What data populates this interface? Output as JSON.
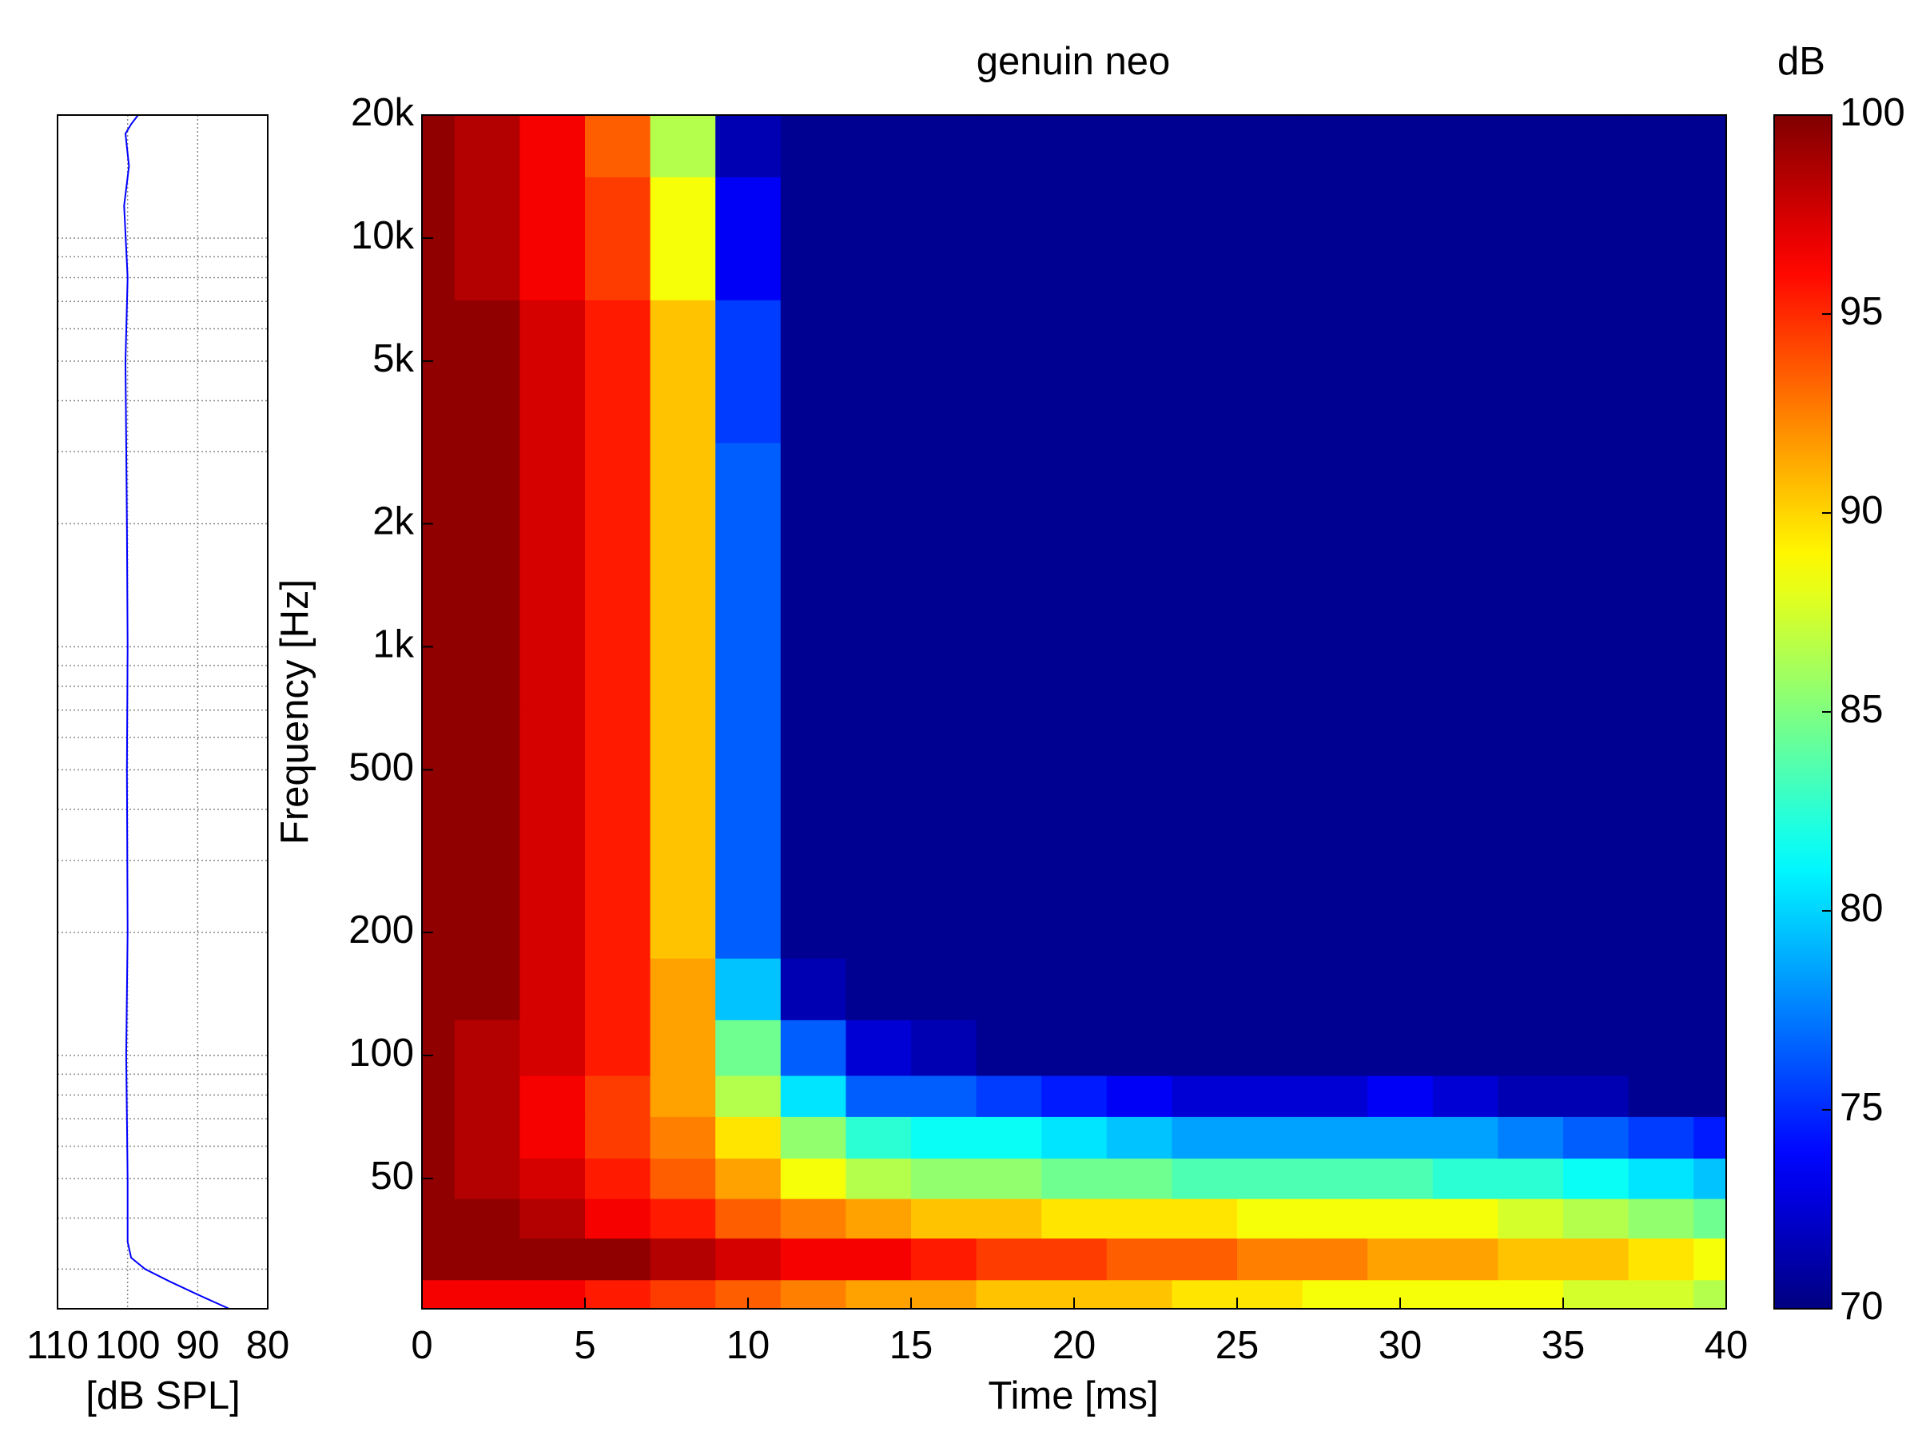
{
  "chart_data": [
    {
      "type": "line",
      "xlabel": "[dB SPL]",
      "xlim": [
        110,
        80
      ],
      "xticks": [
        110,
        100,
        90,
        80
      ],
      "ylim": [
        24,
        20000
      ],
      "log_y": true,
      "grid": true,
      "show_ytick_labels": false,
      "yticks": [
        30,
        40,
        50,
        60,
        70,
        80,
        90,
        100,
        200,
        300,
        400,
        500,
        600,
        700,
        800,
        900,
        1000,
        2000,
        3000,
        4000,
        5000,
        6000,
        7000,
        8000,
        9000,
        10000
      ],
      "frequencies": [
        24,
        26,
        28,
        30,
        32,
        35,
        50,
        100,
        200,
        500,
        1000,
        2000,
        5000,
        8000,
        12000,
        15000,
        18000,
        19000,
        20000
      ],
      "values": [
        85.5,
        90,
        94,
        97.5,
        99.5,
        100,
        100,
        100.2,
        100,
        100.1,
        100,
        100.1,
        100.3,
        100,
        100.5,
        99.8,
        100.3,
        99.5,
        98.5
      ],
      "color": "#0000ff"
    },
    {
      "type": "heatmap",
      "title": "genuin neo",
      "xlabel": "Time [ms]",
      "ylabel": "Frequency [Hz]",
      "xlim": [
        0,
        40
      ],
      "xticks": [
        0,
        5,
        10,
        15,
        20,
        25,
        30,
        35,
        40
      ],
      "ylim": [
        24,
        20000
      ],
      "log_y": true,
      "yticks": [
        50,
        100,
        200,
        500,
        {
          "value": 1000,
          "label": "1k"
        },
        {
          "value": 2000,
          "label": "2k"
        },
        {
          "value": 5000,
          "label": "5k"
        },
        {
          "value": 10000,
          "label": "10k"
        },
        {
          "value": 20000,
          "label": "20k"
        }
      ],
      "colormap": "jet",
      "zlim": [
        70,
        100
      ],
      "x": [
        0,
        2,
        4,
        6,
        8,
        10,
        12,
        14,
        16,
        18,
        20,
        22,
        24,
        26,
        28,
        30,
        32,
        34,
        36,
        38,
        40
      ],
      "y": [
        25,
        32,
        40,
        50,
        63,
        80,
        100,
        150,
        200,
        500,
        1000,
        2000,
        5000,
        10000,
        20000
      ],
      "z": [
        [
          96,
          96,
          96,
          95,
          94,
          93,
          92,
          91,
          91,
          90,
          90,
          90,
          89,
          89,
          88,
          88,
          88,
          88,
          87,
          87,
          86
        ],
        [
          100,
          100,
          99.5,
          99,
          98,
          97,
          96,
          96,
          95,
          94,
          94,
          93,
          93,
          92,
          92,
          91,
          91,
          90,
          90,
          89,
          88
        ],
        [
          99.5,
          99,
          98,
          96,
          95,
          93,
          92,
          91,
          90,
          90,
          89,
          89,
          89,
          88,
          88,
          88,
          88,
          87,
          86,
          85,
          84
        ],
        [
          99,
          98,
          97,
          95,
          93,
          91,
          88,
          86,
          85,
          85,
          84,
          84,
          83,
          83,
          83,
          83,
          82,
          82,
          81,
          80,
          79
        ],
        [
          99,
          98,
          96,
          94,
          92,
          89,
          85,
          82,
          81,
          81,
          80,
          79,
          78,
          78,
          78,
          78,
          78,
          77,
          76,
          75,
          74
        ],
        [
          99,
          98,
          96,
          94,
          91,
          86,
          80,
          76,
          76,
          75,
          74,
          73,
          72,
          72,
          72,
          73,
          72,
          71,
          71,
          70,
          70
        ],
        [
          99,
          98.5,
          97,
          95,
          91,
          84,
          76,
          72,
          71,
          70,
          70,
          70,
          70,
          70,
          70,
          70,
          70,
          70,
          70,
          70,
          70
        ],
        [
          99,
          99,
          97.5,
          95,
          91,
          79,
          71,
          70,
          70,
          70,
          70,
          70,
          70,
          70,
          70,
          70,
          70,
          70,
          70,
          70,
          70
        ],
        [
          99,
          99,
          97.5,
          95,
          90,
          76,
          70,
          70,
          70,
          70,
          70,
          70,
          70,
          70,
          70,
          70,
          70,
          70,
          70,
          70,
          70
        ],
        [
          99,
          99,
          97.5,
          95,
          90,
          76,
          70,
          70,
          70,
          70,
          70,
          70,
          70,
          70,
          70,
          70,
          70,
          70,
          70,
          70,
          70
        ],
        [
          99,
          99,
          97.5,
          95,
          90,
          76,
          70,
          70,
          70,
          70,
          70,
          70,
          70,
          70,
          70,
          70,
          70,
          70,
          70,
          70,
          70
        ],
        [
          99.5,
          99,
          97.5,
          95,
          90,
          76,
          70,
          70,
          70,
          70,
          70,
          70,
          70,
          70,
          70,
          70,
          70,
          70,
          70,
          70,
          70
        ],
        [
          99,
          99,
          97,
          95,
          90,
          75,
          70,
          70,
          70,
          70,
          70,
          70,
          70,
          70,
          70,
          70,
          70,
          70,
          70,
          70,
          70
        ],
        [
          99,
          98.5,
          96.5,
          94,
          88,
          73,
          70,
          70,
          70,
          70,
          70,
          70,
          70,
          70,
          70,
          70,
          70,
          70,
          70,
          70,
          70
        ],
        [
          99,
          98,
          96,
          93,
          86,
          71,
          70,
          70,
          70,
          70,
          70,
          70,
          70,
          70,
          70,
          70,
          70,
          70,
          70,
          70,
          70
        ]
      ]
    },
    {
      "type": "colorbar",
      "title": "dB",
      "colormap": "jet",
      "ylim": [
        70,
        100
      ],
      "yticks": [
        70,
        75,
        80,
        85,
        90,
        95,
        100
      ]
    }
  ]
}
